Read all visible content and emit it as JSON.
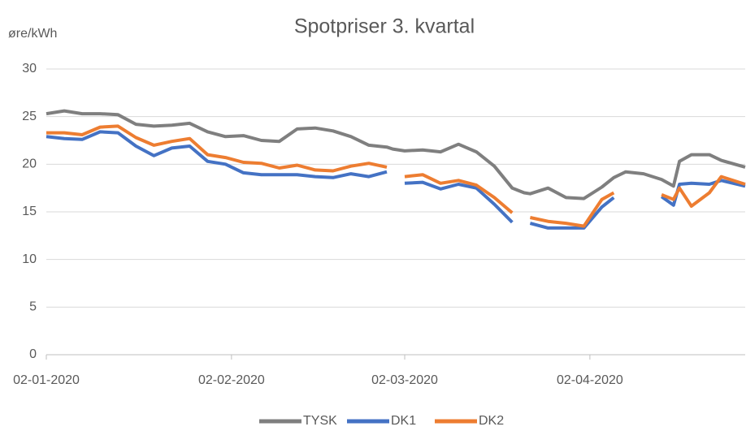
{
  "chart_data": {
    "type": "line",
    "title": "Spotpriser 3. kvartal",
    "y_label": "øre/kWh",
    "x": [
      "02-01-2020",
      "05-01-2020",
      "08-01-2020",
      "11-01-2020",
      "14-01-2020",
      "17-01-2020",
      "20-01-2020",
      "23-01-2020",
      "26-01-2020",
      "29-01-2020",
      "01-02-2020",
      "04-02-2020",
      "07-02-2020",
      "10-02-2020",
      "13-02-2020",
      "16-02-2020",
      "19-02-2020",
      "22-02-2020",
      "25-02-2020",
      "28-02-2020",
      "29-02-2020",
      "02-03-2020",
      "05-03-2020",
      "08-03-2020",
      "11-03-2020",
      "14-03-2020",
      "17-03-2020",
      "20-03-2020",
      "22-03-2020",
      "23-03-2020",
      "26-03-2020",
      "29-03-2020",
      "01-04-2020",
      "04-04-2020",
      "06-04-2020",
      "08-04-2020",
      "11-04-2020",
      "14-04-2020",
      "16-04-2020",
      "17-04-2020",
      "19-04-2020",
      "22-04-2020",
      "24-04-2020",
      "28-04-2020"
    ],
    "series": [
      {
        "name": "TYSK",
        "color": "#7f7f7f",
        "values": [
          25.3,
          25.6,
          25.3,
          25.3,
          25.2,
          24.2,
          24.0,
          24.1,
          24.3,
          23.4,
          22.9,
          23.0,
          22.5,
          22.4,
          23.7,
          23.8,
          23.5,
          22.9,
          22.0,
          21.8,
          21.6,
          21.4,
          21.5,
          21.3,
          22.1,
          21.3,
          19.8,
          17.5,
          17.0,
          16.9,
          17.5,
          16.5,
          16.4,
          17.6,
          18.6,
          19.2,
          19.0,
          18.4,
          17.7,
          20.3,
          21.0,
          21.0,
          20.4,
          19.7
        ]
      },
      {
        "name": "DK1",
        "color": "#4472c4",
        "values": [
          22.9,
          22.7,
          22.6,
          23.4,
          23.3,
          21.9,
          20.9,
          21.7,
          21.9,
          20.3,
          20.0,
          19.1,
          18.9,
          18.9,
          18.9,
          18.7,
          18.6,
          19.0,
          18.7,
          19.2,
          null,
          18.0,
          18.1,
          17.4,
          17.9,
          17.5,
          15.8,
          13.9,
          null,
          13.8,
          13.3,
          13.3,
          13.3,
          15.5,
          16.5,
          null,
          null,
          16.6,
          15.7,
          17.9,
          18.0,
          17.9,
          18.3,
          17.7
        ]
      },
      {
        "name": "DK2",
        "color": "#ed7d31",
        "values": [
          23.3,
          23.3,
          23.1,
          23.9,
          24.0,
          22.8,
          22.0,
          22.4,
          22.7,
          21.0,
          20.7,
          20.2,
          20.1,
          19.6,
          19.9,
          19.4,
          19.3,
          19.8,
          20.1,
          19.7,
          null,
          18.7,
          18.9,
          18.0,
          18.3,
          17.8,
          16.5,
          14.9,
          null,
          14.4,
          14.0,
          13.8,
          13.5,
          16.3,
          17.0,
          null,
          null,
          16.8,
          16.3,
          17.5,
          15.6,
          17.0,
          18.7,
          17.9
        ]
      }
    ],
    "xlim": [
      "02-01-2020",
      "28-04-2020"
    ],
    "xticks": [
      "02-01-2020",
      "02-02-2020",
      "02-03-2020",
      "02-04-2020"
    ],
    "ylim": [
      0,
      30
    ],
    "yticks": [
      0,
      5,
      10,
      15,
      20,
      25,
      30
    ],
    "grid": true,
    "legend": "bottom"
  }
}
